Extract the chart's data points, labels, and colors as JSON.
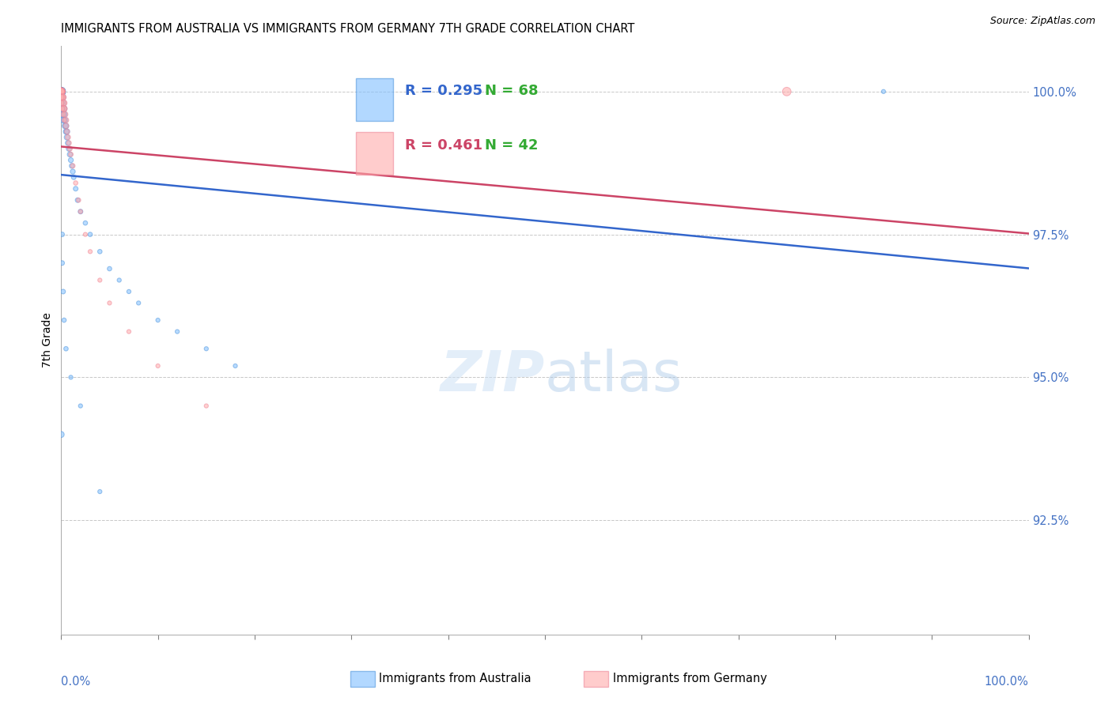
{
  "title": "IMMIGRANTS FROM AUSTRALIA VS IMMIGRANTS FROM GERMANY 7TH GRADE CORRELATION CHART",
  "source": "Source: ZipAtlas.com",
  "ylabel": "7th Grade",
  "ytick_labels": [
    "100.0%",
    "97.5%",
    "95.0%",
    "92.5%"
  ],
  "ytick_values": [
    1.0,
    0.975,
    0.95,
    0.925
  ],
  "xlim": [
    0.0,
    1.0
  ],
  "ylim": [
    0.905,
    1.008
  ],
  "legend_blue_R": "R = 0.295",
  "legend_blue_N": "N = 68",
  "legend_pink_R": "R = 0.461",
  "legend_pink_N": "N = 42",
  "background_color": "#ffffff",
  "grid_color": "#c8c8c8",
  "blue_color": "#7fbfff",
  "pink_color": "#ffaaaa",
  "blue_line_color": "#3366cc",
  "pink_line_color": "#cc4466",
  "blue_scatter_edge": "#5599dd",
  "pink_scatter_edge": "#ee8899",
  "australia_x": [
    0.0,
    0.0,
    0.0,
    0.0,
    0.0,
    0.0,
    0.0,
    0.0,
    0.0,
    0.0,
    0.0,
    0.0,
    0.0,
    0.0,
    0.001,
    0.001,
    0.001,
    0.001,
    0.001,
    0.002,
    0.002,
    0.002,
    0.003,
    0.003,
    0.003,
    0.003,
    0.004,
    0.004,
    0.005,
    0.005,
    0.006,
    0.006,
    0.007,
    0.008,
    0.009,
    0.01,
    0.011,
    0.012,
    0.013,
    0.015,
    0.017,
    0.02,
    0.025,
    0.03,
    0.04,
    0.05,
    0.06,
    0.07,
    0.08,
    0.1,
    0.12,
    0.15,
    0.18,
    0.0,
    0.0,
    0.0,
    0.0,
    0.0,
    0.001,
    0.001,
    0.002,
    0.003,
    0.005,
    0.01,
    0.02,
    0.04,
    0.85,
    0.0
  ],
  "australia_y": [
    1.0,
    1.0,
    1.0,
    1.0,
    1.0,
    1.0,
    1.0,
    1.0,
    1.0,
    1.0,
    1.0,
    1.0,
    1.0,
    1.0,
    0.999,
    0.999,
    0.999,
    0.998,
    0.998,
    0.998,
    0.997,
    0.997,
    0.997,
    0.996,
    0.996,
    0.995,
    0.995,
    0.994,
    0.994,
    0.993,
    0.993,
    0.992,
    0.991,
    0.99,
    0.989,
    0.988,
    0.987,
    0.986,
    0.985,
    0.983,
    0.981,
    0.979,
    0.977,
    0.975,
    0.972,
    0.969,
    0.967,
    0.965,
    0.963,
    0.96,
    0.958,
    0.955,
    0.952,
    0.999,
    0.998,
    0.997,
    0.996,
    0.995,
    0.975,
    0.97,
    0.965,
    0.96,
    0.955,
    0.95,
    0.945,
    0.93,
    1.0,
    0.94
  ],
  "australia_size": [
    60,
    60,
    60,
    55,
    55,
    55,
    50,
    50,
    50,
    50,
    45,
    45,
    45,
    40,
    40,
    40,
    35,
    35,
    35,
    35,
    30,
    30,
    30,
    30,
    28,
    28,
    28,
    28,
    25,
    25,
    25,
    25,
    22,
    22,
    22,
    20,
    20,
    20,
    18,
    18,
    18,
    18,
    16,
    16,
    16,
    16,
    14,
    14,
    14,
    14,
    14,
    14,
    14,
    30,
    30,
    28,
    28,
    25,
    18,
    18,
    18,
    16,
    16,
    14,
    14,
    14,
    14,
    30
  ],
  "germany_x": [
    0.0,
    0.0,
    0.0,
    0.0,
    0.0,
    0.0,
    0.0,
    0.0,
    0.0,
    0.0,
    0.001,
    0.001,
    0.002,
    0.002,
    0.003,
    0.003,
    0.003,
    0.004,
    0.005,
    0.005,
    0.006,
    0.007,
    0.008,
    0.009,
    0.01,
    0.012,
    0.015,
    0.018,
    0.02,
    0.025,
    0.03,
    0.04,
    0.05,
    0.07,
    0.1,
    0.15,
    0.75,
    0.0,
    0.0,
    0.001,
    0.002,
    0.003
  ],
  "germany_y": [
    1.0,
    1.0,
    1.0,
    1.0,
    1.0,
    1.0,
    1.0,
    1.0,
    1.0,
    1.0,
    0.999,
    0.999,
    0.999,
    0.998,
    0.998,
    0.997,
    0.997,
    0.996,
    0.995,
    0.994,
    0.993,
    0.992,
    0.991,
    0.99,
    0.989,
    0.987,
    0.984,
    0.981,
    0.979,
    0.975,
    0.972,
    0.967,
    0.963,
    0.958,
    0.952,
    0.945,
    1.0,
    0.999,
    0.998,
    0.997,
    0.996,
    0.995
  ],
  "germany_size": [
    50,
    50,
    50,
    45,
    45,
    45,
    40,
    40,
    40,
    40,
    35,
    35,
    32,
    32,
    30,
    30,
    28,
    28,
    25,
    25,
    22,
    22,
    20,
    20,
    18,
    18,
    16,
    16,
    14,
    14,
    14,
    14,
    14,
    14,
    14,
    14,
    60,
    28,
    25,
    22,
    20,
    18
  ],
  "trend_line_x_start": 0.0,
  "trend_line_x_end": 1.0,
  "xtick_positions": [
    0.0,
    0.1,
    0.2,
    0.3,
    0.4,
    0.5,
    0.6,
    0.7,
    0.8,
    0.9,
    1.0
  ]
}
